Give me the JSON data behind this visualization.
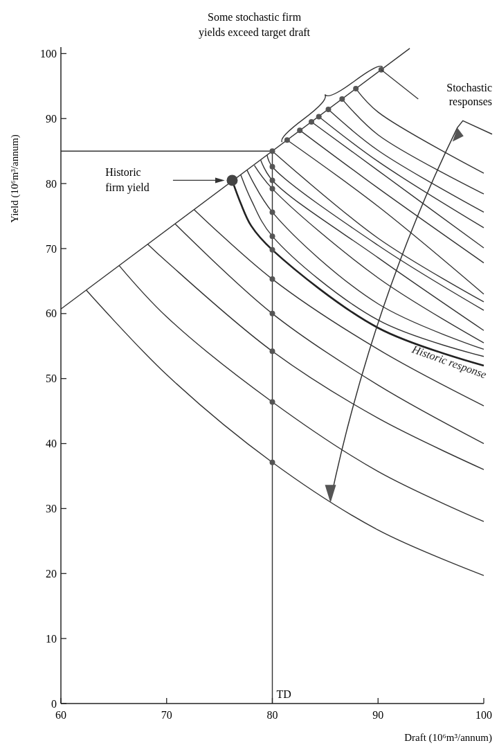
{
  "chart_data": {
    "type": "line",
    "xlabel": "Draft (10⁶m³/annum)",
    "ylabel": "Yield (10⁶m³/annum)",
    "xlim": [
      60,
      100
    ],
    "ylim": [
      0,
      101
    ],
    "xticks": [
      60,
      70,
      80,
      90,
      100
    ],
    "yticks": [
      0,
      10,
      20,
      30,
      40,
      50,
      60,
      70,
      80,
      90,
      100
    ],
    "annotations": [
      "Some stochastic firm yields exceed target draft",
      "Stochastic responses",
      "Historic firm yield",
      {
        "text": "TD",
        "x": 80,
        "y": 0
      }
    ],
    "series": [
      {
        "color": "#333333",
        "x": [
          60,
          93
        ],
        "values": [
          60.7,
          100.8
        ]
      },
      {
        "color": "#333333",
        "x": [
          60,
          80
        ],
        "values": [
          85,
          85
        ]
      },
      {
        "color": "#333333",
        "x": [
          80,
          80
        ],
        "values": [
          0,
          85
        ]
      },
      {
        "color": "#333333",
        "x": [
          62.4,
          70,
          80,
          90,
          100
        ],
        "values": [
          63.6,
          50.6,
          37.1,
          26.7,
          19.7
        ]
      },
      {
        "color": "#333333",
        "x": [
          65.5,
          70,
          80,
          90,
          100
        ],
        "values": [
          67.4,
          59.5,
          46.4,
          35.7,
          28
        ]
      },
      {
        "color": "#333333",
        "x": [
          68.2,
          70,
          80,
          90,
          100
        ],
        "values": [
          70.7,
          68,
          54.2,
          43.9,
          36
        ]
      },
      {
        "color": "#333333",
        "x": [
          70.8,
          80,
          90,
          100
        ],
        "values": [
          73.8,
          60,
          49,
          40
        ]
      },
      {
        "color": "#333333",
        "x": [
          72.6,
          80,
          90,
          100
        ],
        "values": [
          76,
          65.3,
          54.5,
          45.8
        ]
      },
      {
        "name": "Historic response",
        "color": "#222222",
        "x": [
          76.2,
          77,
          78,
          80,
          90,
          100
        ],
        "values": [
          80.5,
          77,
          73.5,
          69.8,
          57.8,
          52
        ]
      },
      {
        "color": "#333333",
        "x": [
          77,
          78,
          80,
          90,
          100
        ],
        "values": [
          81.4,
          77.5,
          71.9,
          59,
          53.4
        ]
      },
      {
        "color": "#333333",
        "x": [
          77.6,
          80,
          90,
          100
        ],
        "values": [
          82.1,
          75.6,
          61.5,
          54.5
        ]
      },
      {
        "color": "#333333",
        "x": [
          78.3,
          80,
          90,
          100
        ],
        "values": [
          82.8,
          79.2,
          65.5,
          55.5
        ]
      },
      {
        "color": "#333333",
        "x": [
          78.9,
          80,
          90,
          100
        ],
        "values": [
          83.6,
          80.5,
          68.6,
          57.4
        ]
      },
      {
        "color": "#333333",
        "x": [
          79.5,
          80,
          90,
          100
        ],
        "values": [
          84.4,
          82.6,
          70.5,
          60.5
        ]
      },
      {
        "color": "#333333",
        "x": [
          80,
          90,
          100
        ],
        "values": [
          85,
          71.6,
          61.8
        ]
      },
      {
        "color": "#333333",
        "x": [
          81.4,
          90,
          100
        ],
        "values": [
          86.7,
          76.5,
          63
        ]
      },
      {
        "color": "#333333",
        "x": [
          82.6,
          90,
          100
        ],
        "values": [
          88.2,
          79.3,
          67.8
        ]
      },
      {
        "color": "#333333",
        "x": [
          83.7,
          90,
          100
        ],
        "values": [
          89.5,
          82,
          70.1
        ]
      },
      {
        "color": "#333333",
        "x": [
          84.4,
          90,
          100
        ],
        "values": [
          90.3,
          83.4,
          73.2
        ]
      },
      {
        "color": "#333333",
        "x": [
          85.3,
          90,
          100
        ],
        "values": [
          91.4,
          85.1,
          75.6
        ]
      },
      {
        "color": "#333333",
        "x": [
          86.6,
          90,
          100
        ],
        "values": [
          93,
          87.5,
          78.4
        ]
      },
      {
        "color": "#333333",
        "x": [
          87.9,
          90,
          100
        ],
        "values": [
          94.6,
          91,
          81.6
        ]
      },
      {
        "type": "scatter",
        "marker": "circle",
        "color": "#555555",
        "x": [
          80,
          80,
          80,
          80,
          80,
          80,
          80,
          80,
          80,
          80,
          80,
          80
        ],
        "values": [
          85,
          82.6,
          80.5,
          79.2,
          75.6,
          71.9,
          69.8,
          65.3,
          60,
          54.2,
          46.4,
          37.1
        ]
      },
      {
        "type": "scatter",
        "marker": "circle",
        "color": "#555555",
        "x": [
          81.4,
          82.6,
          83.7,
          84.4,
          85.3,
          86.6,
          87.9,
          90.3
        ],
        "values": [
          86.7,
          88.2,
          89.5,
          90.3,
          91.4,
          93,
          94.6,
          97.5
        ]
      },
      {
        "type": "bubble",
        "color": "#444444",
        "x": [
          76.2
        ],
        "values": [
          80.5
        ],
        "sizes": [
          1
        ]
      }
    ]
  }
}
